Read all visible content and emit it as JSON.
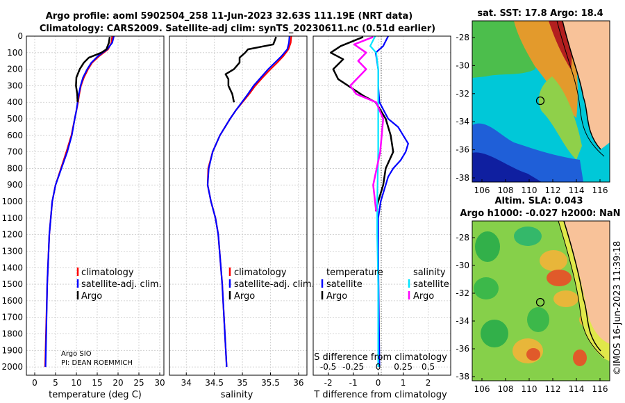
{
  "title_line1": "Argo profile: aoml 5902504_258 11-Jun-2023 32.63S 111.19E (NRT data)",
  "title_line2": "Climatology: CARS2009. Satellite-adj clim: synTS_20230611.nc (0.51d earlier)",
  "depth_ticks": [
    0,
    100,
    200,
    300,
    400,
    500,
    600,
    700,
    800,
    900,
    1000,
    1100,
    1200,
    1300,
    1400,
    1500,
    1600,
    1700,
    1800,
    1900,
    2000
  ],
  "colors": {
    "climatology": "#ff0000",
    "satellite": "#0000ff",
    "argo": "#000000",
    "sal_sat": "#00e5ff",
    "sal_argo": "#ff00ff"
  },
  "chart_data": [
    {
      "type": "line",
      "xlabel": "temperature (deg C)",
      "ylabel": "depth",
      "xlim": [
        -2,
        31
      ],
      "ylim": [
        2050,
        0
      ],
      "xticks": [
        0,
        5,
        10,
        15,
        20,
        25,
        30
      ],
      "legend": [
        "climatology",
        "satellite-adj. clim.",
        "Argo"
      ],
      "annotation_line1": "Argo SIO",
      "annotation_line2": "PI: DEAN ROEMMICH",
      "series": [
        {
          "name": "climatology",
          "depth": [
            0,
            40,
            80,
            120,
            160,
            200,
            250,
            300,
            350,
            400,
            450,
            500,
            600,
            700,
            800,
            900,
            1000,
            1200,
            1500,
            2000
          ],
          "values": [
            18.6,
            18.4,
            17.6,
            15.5,
            13.8,
            12.8,
            11.8,
            11.1,
            10.7,
            10.4,
            10.0,
            9.6,
            8.8,
            7.6,
            6.3,
            5.0,
            4.2,
            3.5,
            3.0,
            2.5
          ]
        },
        {
          "name": "satellite-adj. clim.",
          "depth": [
            0,
            40,
            80,
            120,
            160,
            200,
            250,
            300,
            350,
            400,
            450,
            500,
            600,
            700,
            800,
            900,
            1000,
            1200,
            1500,
            2000
          ],
          "values": [
            19.0,
            18.6,
            17.4,
            15.2,
            13.6,
            12.6,
            11.6,
            11.0,
            10.6,
            10.3,
            10.0,
            9.6,
            8.9,
            7.8,
            6.4,
            5.0,
            4.2,
            3.5,
            3.0,
            2.6
          ]
        },
        {
          "name": "Argo",
          "depth": [
            5,
            40,
            80,
            100,
            130,
            160,
            200,
            250,
            300,
            350,
            400
          ],
          "values": [
            18.0,
            17.8,
            17.2,
            16.0,
            13.0,
            11.8,
            10.8,
            10.0,
            9.9,
            10.2,
            10.3
          ]
        }
      ]
    },
    {
      "type": "line",
      "xlabel": "salinity",
      "ylabel": "depth",
      "xlim": [
        33.7,
        36.15
      ],
      "ylim": [
        2050,
        0
      ],
      "xticks": [
        34,
        34.5,
        35,
        35.5,
        36
      ],
      "legend": [
        "climatology",
        "satellite-adj. clim.",
        "Argo"
      ],
      "series": [
        {
          "name": "climatology",
          "depth": [
            0,
            40,
            80,
            120,
            160,
            200,
            250,
            300,
            350,
            400,
            450,
            500,
            600,
            700,
            800,
            900,
            1000,
            1100,
            1200,
            1500,
            2000
          ],
          "values": [
            35.87,
            35.86,
            35.82,
            35.73,
            35.62,
            35.5,
            35.36,
            35.23,
            35.12,
            35.0,
            34.88,
            34.78,
            34.6,
            34.47,
            34.39,
            34.38,
            34.44,
            34.52,
            34.57,
            34.64,
            34.72
          ]
        },
        {
          "name": "satellite-adj. clim.",
          "depth": [
            0,
            40,
            80,
            120,
            160,
            200,
            250,
            300,
            350,
            400,
            450,
            500,
            600,
            700,
            800,
            900,
            1000,
            1100,
            1200,
            1500,
            2000
          ],
          "values": [
            35.84,
            35.83,
            35.8,
            35.7,
            35.58,
            35.46,
            35.33,
            35.2,
            35.1,
            34.99,
            34.88,
            34.78,
            34.6,
            34.47,
            34.4,
            34.38,
            34.44,
            34.52,
            34.57,
            34.64,
            34.72
          ]
        },
        {
          "name": "Argo",
          "depth": [
            5,
            50,
            80,
            100,
            130,
            160,
            200,
            230,
            260,
            300,
            350,
            400
          ],
          "values": [
            35.6,
            35.55,
            35.1,
            35.05,
            34.95,
            34.95,
            34.85,
            34.7,
            34.75,
            34.75,
            34.82,
            34.85
          ]
        }
      ]
    },
    {
      "type": "line",
      "xlabel": "T difference from climatology",
      "xlabel_top": "S difference from climatology",
      "ylabel": "depth",
      "xlim": [
        -2.6,
        2.9
      ],
      "ylim": [
        2050,
        0
      ],
      "xticks": [
        -2,
        -1,
        0,
        1,
        2
      ],
      "xticks_S": [
        "-0.5",
        "-0.25",
        "0",
        "0.25",
        "0.5"
      ],
      "legend_T_title": "temperature",
      "legend_S_title": "salinity",
      "legend_T": [
        "satellite",
        "Argo"
      ],
      "legend_S": [
        "satellite",
        "Argo"
      ],
      "series": [
        {
          "name": "T satellite",
          "depth": [
            0,
            60,
            100,
            200,
            300,
            400,
            500,
            550,
            600,
            650,
            700,
            750,
            800,
            850,
            900,
            950,
            1000,
            1100,
            1300,
            2000
          ],
          "values": [
            0.4,
            0.2,
            -0.1,
            0.0,
            0.0,
            0.05,
            0.4,
            0.8,
            1.0,
            1.2,
            1.1,
            0.9,
            0.6,
            0.4,
            0.3,
            0.2,
            0.1,
            0.0,
            0.0,
            0.05
          ]
        },
        {
          "name": "T Argo",
          "depth": [
            5,
            60,
            100,
            140,
            200,
            260,
            300,
            360,
            400,
            500,
            600,
            700,
            800,
            900,
            1000,
            1060
          ],
          "values": [
            -0.6,
            -1.5,
            -1.9,
            -1.4,
            -1.8,
            -1.6,
            -1.2,
            -0.6,
            -0.1,
            0.3,
            0.5,
            0.6,
            0.3,
            0.2,
            0.0,
            -0.1
          ]
        },
        {
          "name": "S satellite",
          "depth": [
            0,
            60,
            100,
            200,
            300,
            400,
            500,
            700,
            1000,
            1200,
            1500,
            2000
          ],
          "values": [
            -0.03,
            -0.08,
            -0.02,
            0.0,
            0.0,
            0.0,
            0.0,
            0.0,
            -0.01,
            -0.01,
            0.0,
            0.0
          ]
        },
        {
          "name": "S Argo",
          "depth": [
            5,
            50,
            100,
            150,
            200,
            250,
            300,
            350,
            400,
            500,
            700,
            900,
            1060
          ],
          "values": [
            -0.05,
            -0.24,
            -0.12,
            -0.2,
            -0.12,
            -0.2,
            -0.28,
            -0.22,
            -0.02,
            0.05,
            0.02,
            -0.05,
            -0.02
          ]
        }
      ]
    }
  ],
  "maps": [
    {
      "title": "sat. SST: 17.8 Argo: 18.4",
      "title2": "",
      "lat_ticks": [
        "-28",
        "-30",
        "-32",
        "-34",
        "-36",
        "-38"
      ],
      "lon_ticks": [
        "106",
        "108",
        "110",
        "112",
        "114",
        "116"
      ]
    },
    {
      "title": "Altim. SLA: 0.043",
      "title2": "Argo h1000: -0.027 h2000: NaN",
      "lat_ticks": [
        "-28",
        "-30",
        "-32",
        "-34",
        "-36",
        "-38"
      ],
      "lon_ticks": [
        "106",
        "108",
        "110",
        "112",
        "114",
        "116"
      ]
    }
  ],
  "stamp": "©IMOS 16-Jun-2023 11:39:18"
}
